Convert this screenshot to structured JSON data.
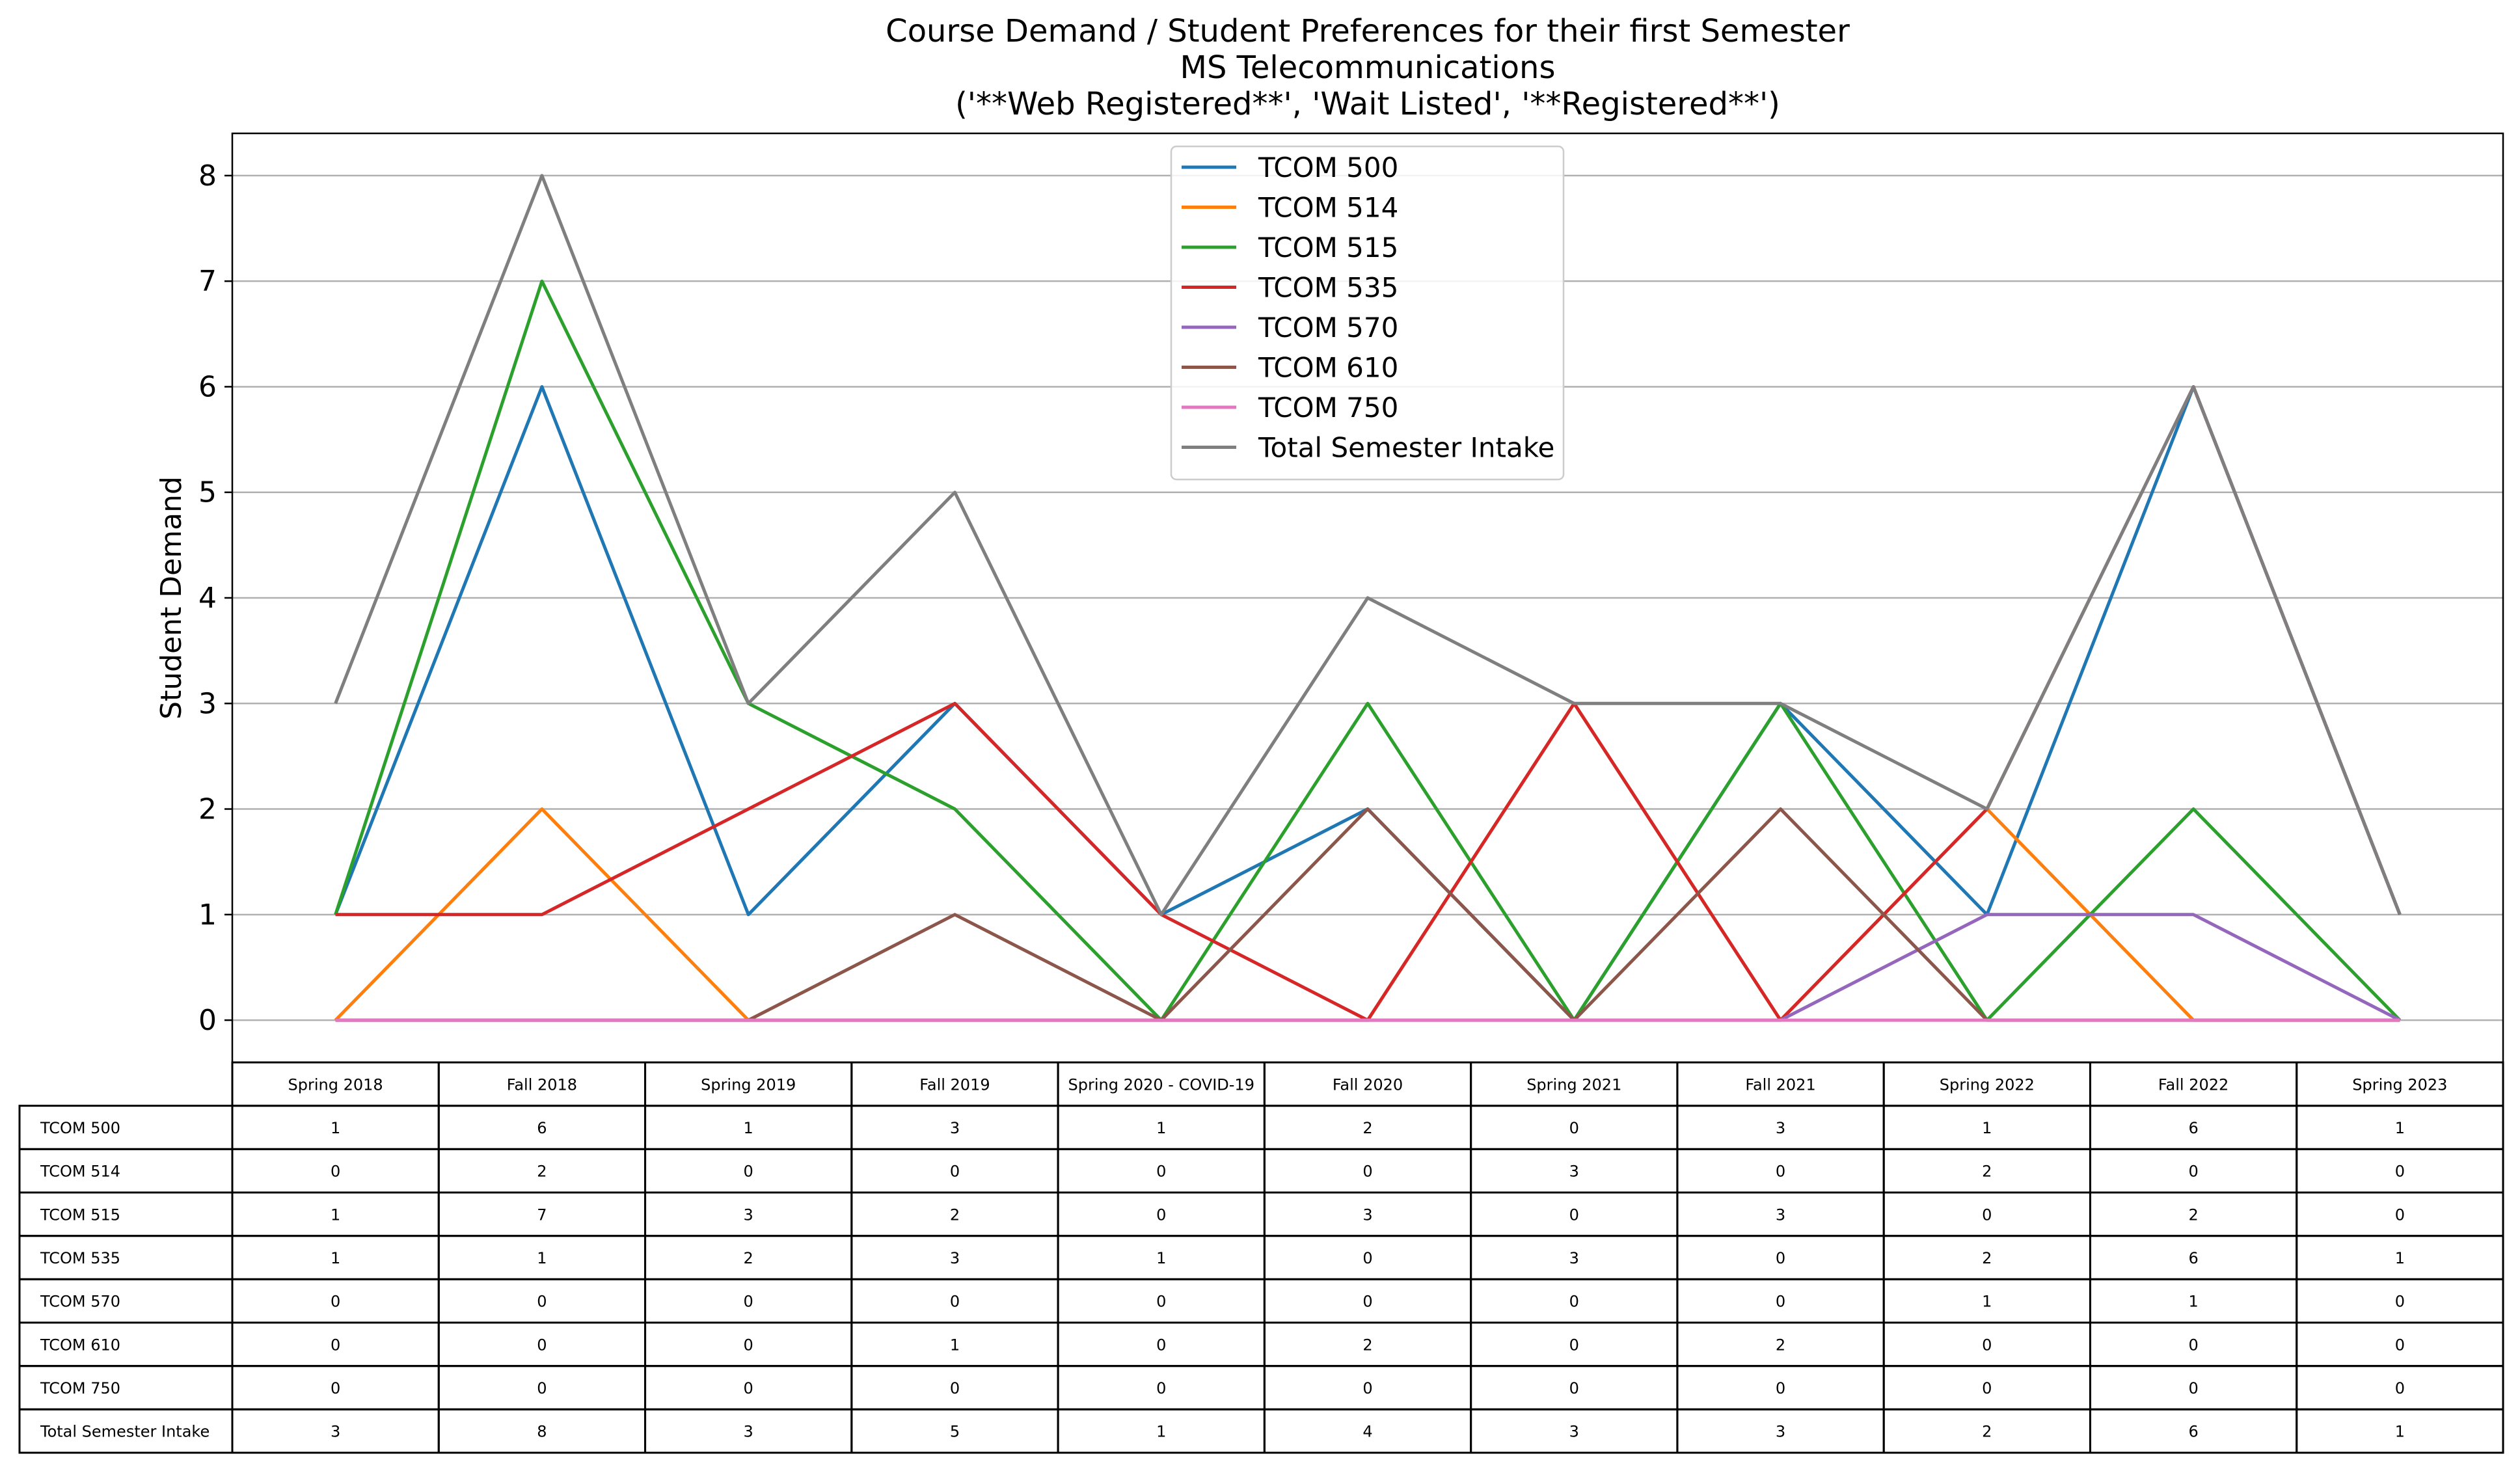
{
  "chart_data": {
    "type": "line",
    "title": [
      "Course Demand / Student Preferences for their first Semester",
      "MS Telecommunications",
      "('**Web Registered**', 'Wait Listed', '**Registered**')"
    ],
    "xlabel": "",
    "ylabel": "Student Demand",
    "ylim": [
      -0.4,
      8.4
    ],
    "yticks": [
      0,
      1,
      2,
      3,
      4,
      5,
      6,
      7,
      8
    ],
    "grid": "y",
    "legend_position": "top-center",
    "categories": [
      "Spring 2018",
      "Fall 2018",
      "Spring 2019",
      "Fall 2019",
      "Spring 2020 - COVID-19",
      "Fall 2020",
      "Spring 2021",
      "Fall 2021",
      "Spring 2022",
      "Fall 2022",
      "Spring 2023"
    ],
    "series": [
      {
        "name": "TCOM 500",
        "color": "#1f77b4",
        "values": [
          1,
          6,
          1,
          3,
          1,
          2,
          0,
          3,
          1,
          6,
          1
        ]
      },
      {
        "name": "TCOM 514",
        "color": "#ff7f0e",
        "values": [
          0,
          2,
          0,
          0,
          0,
          0,
          3,
          0,
          2,
          0,
          0
        ]
      },
      {
        "name": "TCOM 515",
        "color": "#2ca02c",
        "values": [
          1,
          7,
          3,
          2,
          0,
          3,
          0,
          3,
          0,
          2,
          0
        ]
      },
      {
        "name": "TCOM 535",
        "color": "#d62728",
        "values": [
          1,
          1,
          2,
          3,
          1,
          0,
          3,
          0,
          2,
          6,
          1
        ]
      },
      {
        "name": "TCOM 570",
        "color": "#9467bd",
        "values": [
          0,
          0,
          0,
          0,
          0,
          0,
          0,
          0,
          1,
          1,
          0
        ]
      },
      {
        "name": "TCOM 610",
        "color": "#8c564b",
        "values": [
          0,
          0,
          0,
          1,
          0,
          2,
          0,
          2,
          0,
          0,
          0
        ]
      },
      {
        "name": "TCOM 750",
        "color": "#e377c2",
        "values": [
          0,
          0,
          0,
          0,
          0,
          0,
          0,
          0,
          0,
          0,
          0
        ]
      },
      {
        "name": "Total Semester Intake",
        "color": "#7f7f7f",
        "values": [
          3,
          8,
          3,
          5,
          1,
          4,
          3,
          3,
          2,
          6,
          1
        ]
      }
    ],
    "table": {
      "col_headers": [
        "Spring 2018",
        "Fall 2018",
        "Spring 2019",
        "Fall 2019",
        "Spring 2020 - COVID-19",
        "Fall 2020",
        "Spring 2021",
        "Fall 2021",
        "Spring 2022",
        "Fall 2022",
        "Spring 2023"
      ],
      "rows": [
        {
          "label": "TCOM 500",
          "values": [
            1,
            6,
            1,
            3,
            1,
            2,
            0,
            3,
            1,
            6,
            1
          ]
        },
        {
          "label": "TCOM 514",
          "values": [
            0,
            2,
            0,
            0,
            0,
            0,
            3,
            0,
            2,
            0,
            0
          ]
        },
        {
          "label": "TCOM 515",
          "values": [
            1,
            7,
            3,
            2,
            0,
            3,
            0,
            3,
            0,
            2,
            0
          ]
        },
        {
          "label": "TCOM 535",
          "values": [
            1,
            1,
            2,
            3,
            1,
            0,
            3,
            0,
            2,
            6,
            1
          ]
        },
        {
          "label": "TCOM 570",
          "values": [
            0,
            0,
            0,
            0,
            0,
            0,
            0,
            0,
            1,
            1,
            0
          ]
        },
        {
          "label": "TCOM 610",
          "values": [
            0,
            0,
            0,
            1,
            0,
            2,
            0,
            2,
            0,
            0,
            0
          ]
        },
        {
          "label": "TCOM 750",
          "values": [
            0,
            0,
            0,
            0,
            0,
            0,
            0,
            0,
            0,
            0,
            0
          ]
        },
        {
          "label": "Total Semester Intake",
          "values": [
            3,
            8,
            3,
            5,
            1,
            4,
            3,
            3,
            2,
            6,
            1
          ]
        }
      ]
    }
  }
}
